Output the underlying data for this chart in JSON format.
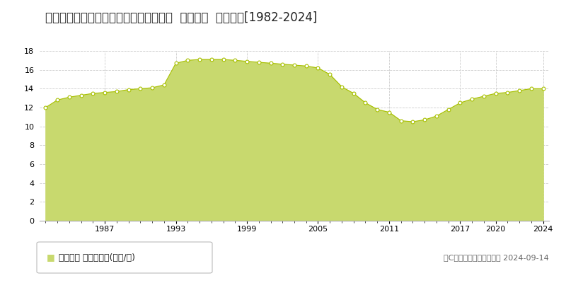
{
  "title": "福島県いわき市常磐関船町堀田９番３外  地価公示  地価推移[1982-2024]",
  "years": [
    1982,
    1983,
    1984,
    1985,
    1986,
    1987,
    1988,
    1989,
    1990,
    1991,
    1992,
    1993,
    1994,
    1995,
    1996,
    1997,
    1998,
    1999,
    2000,
    2001,
    2002,
    2003,
    2004,
    2005,
    2006,
    2007,
    2008,
    2009,
    2010,
    2011,
    2012,
    2013,
    2014,
    2015,
    2016,
    2017,
    2018,
    2019,
    2020,
    2021,
    2022,
    2023,
    2024
  ],
  "values": [
    12.0,
    12.8,
    13.1,
    13.3,
    13.5,
    13.6,
    13.7,
    13.9,
    14.0,
    14.1,
    14.4,
    16.7,
    17.0,
    17.1,
    17.1,
    17.1,
    17.0,
    16.9,
    16.8,
    16.7,
    16.6,
    16.5,
    16.4,
    16.2,
    15.5,
    14.2,
    13.5,
    12.5,
    11.8,
    11.5,
    10.6,
    10.5,
    10.7,
    11.1,
    11.8,
    12.5,
    12.9,
    13.2,
    13.5,
    13.6,
    13.8,
    14.0,
    14.0
  ],
  "fill_color": "#c8d96e",
  "line_color": "#a8c000",
  "marker_face_color": "#ffffff",
  "marker_edge_color": "#a8c000",
  "background_color": "#ffffff",
  "plot_bg_color": "#ffffff",
  "grid_color": "#cccccc",
  "ylim": [
    0,
    18
  ],
  "yticks": [
    0,
    2,
    4,
    6,
    8,
    10,
    12,
    14,
    16,
    18
  ],
  "xtick_years": [
    1987,
    1993,
    1999,
    2005,
    2011,
    2017,
    2020,
    2024
  ],
  "all_years_for_minor": [
    1982,
    1983,
    1984,
    1985,
    1986,
    1987,
    1988,
    1989,
    1990,
    1991,
    1992,
    1993,
    1994,
    1995,
    1996,
    1997,
    1998,
    1999,
    2000,
    2001,
    2002,
    2003,
    2004,
    2005,
    2006,
    2007,
    2008,
    2009,
    2010,
    2011,
    2012,
    2013,
    2014,
    2015,
    2016,
    2017,
    2018,
    2019,
    2020,
    2021,
    2022,
    2023,
    2024
  ],
  "legend_label": "地価公示 平均坪単価(万円/坪)",
  "legend_marker_color": "#c8d96e",
  "copyright_text": "（C）土地価格ドットコム 2024-09-14",
  "title_fontsize": 12,
  "tick_fontsize": 8,
  "legend_fontsize": 9,
  "copyright_fontsize": 8
}
